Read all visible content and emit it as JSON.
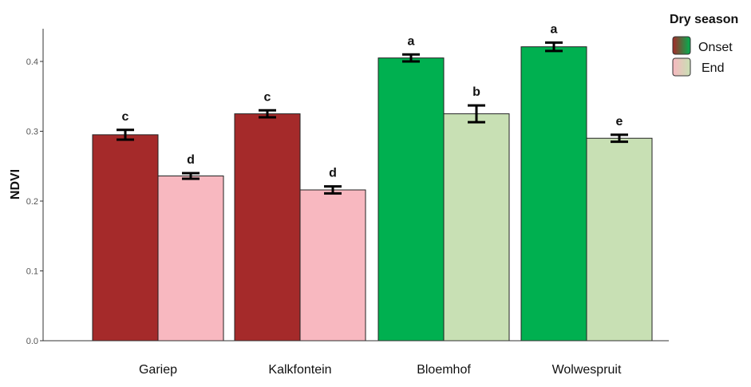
{
  "chart_data": {
    "type": "bar",
    "ylabel": "NDVI",
    "xlabel": "",
    "ylim": [
      0,
      0.44
    ],
    "yticks": [
      "0.0",
      "0.1",
      "0.2",
      "0.3",
      "0.4"
    ],
    "grid": false,
    "legend_placement": "top-right",
    "categories": [
      "Gariep",
      "Kalkfontein",
      "Bloemhof",
      "Wolwespruit"
    ],
    "legend": {
      "title": "Dry season",
      "entries": [
        {
          "label": "Onset",
          "gradient": [
            "#a52a2a",
            "#00b050"
          ]
        },
        {
          "label": "End",
          "gradient": [
            "#f8b8c0",
            "#c8e0b4"
          ]
        }
      ]
    },
    "series": [
      {
        "name": "Onset",
        "values": [
          0.295,
          0.325,
          0.405,
          0.421
        ],
        "errors": [
          0.007,
          0.005,
          0.005,
          0.006
        ],
        "labels": [
          "c",
          "c",
          "a",
          "a"
        ],
        "colors": [
          "#a52a2a",
          "#a52a2a",
          "#00b050",
          "#00b050"
        ]
      },
      {
        "name": "End",
        "values": [
          0.236,
          0.216,
          0.325,
          0.29
        ],
        "errors": [
          0.004,
          0.005,
          0.012,
          0.005
        ],
        "labels": [
          "d",
          "d",
          "b",
          "e"
        ],
        "colors": [
          "#f8b8c0",
          "#f8b8c0",
          "#c8e0b4",
          "#c8e0b4"
        ]
      }
    ]
  }
}
